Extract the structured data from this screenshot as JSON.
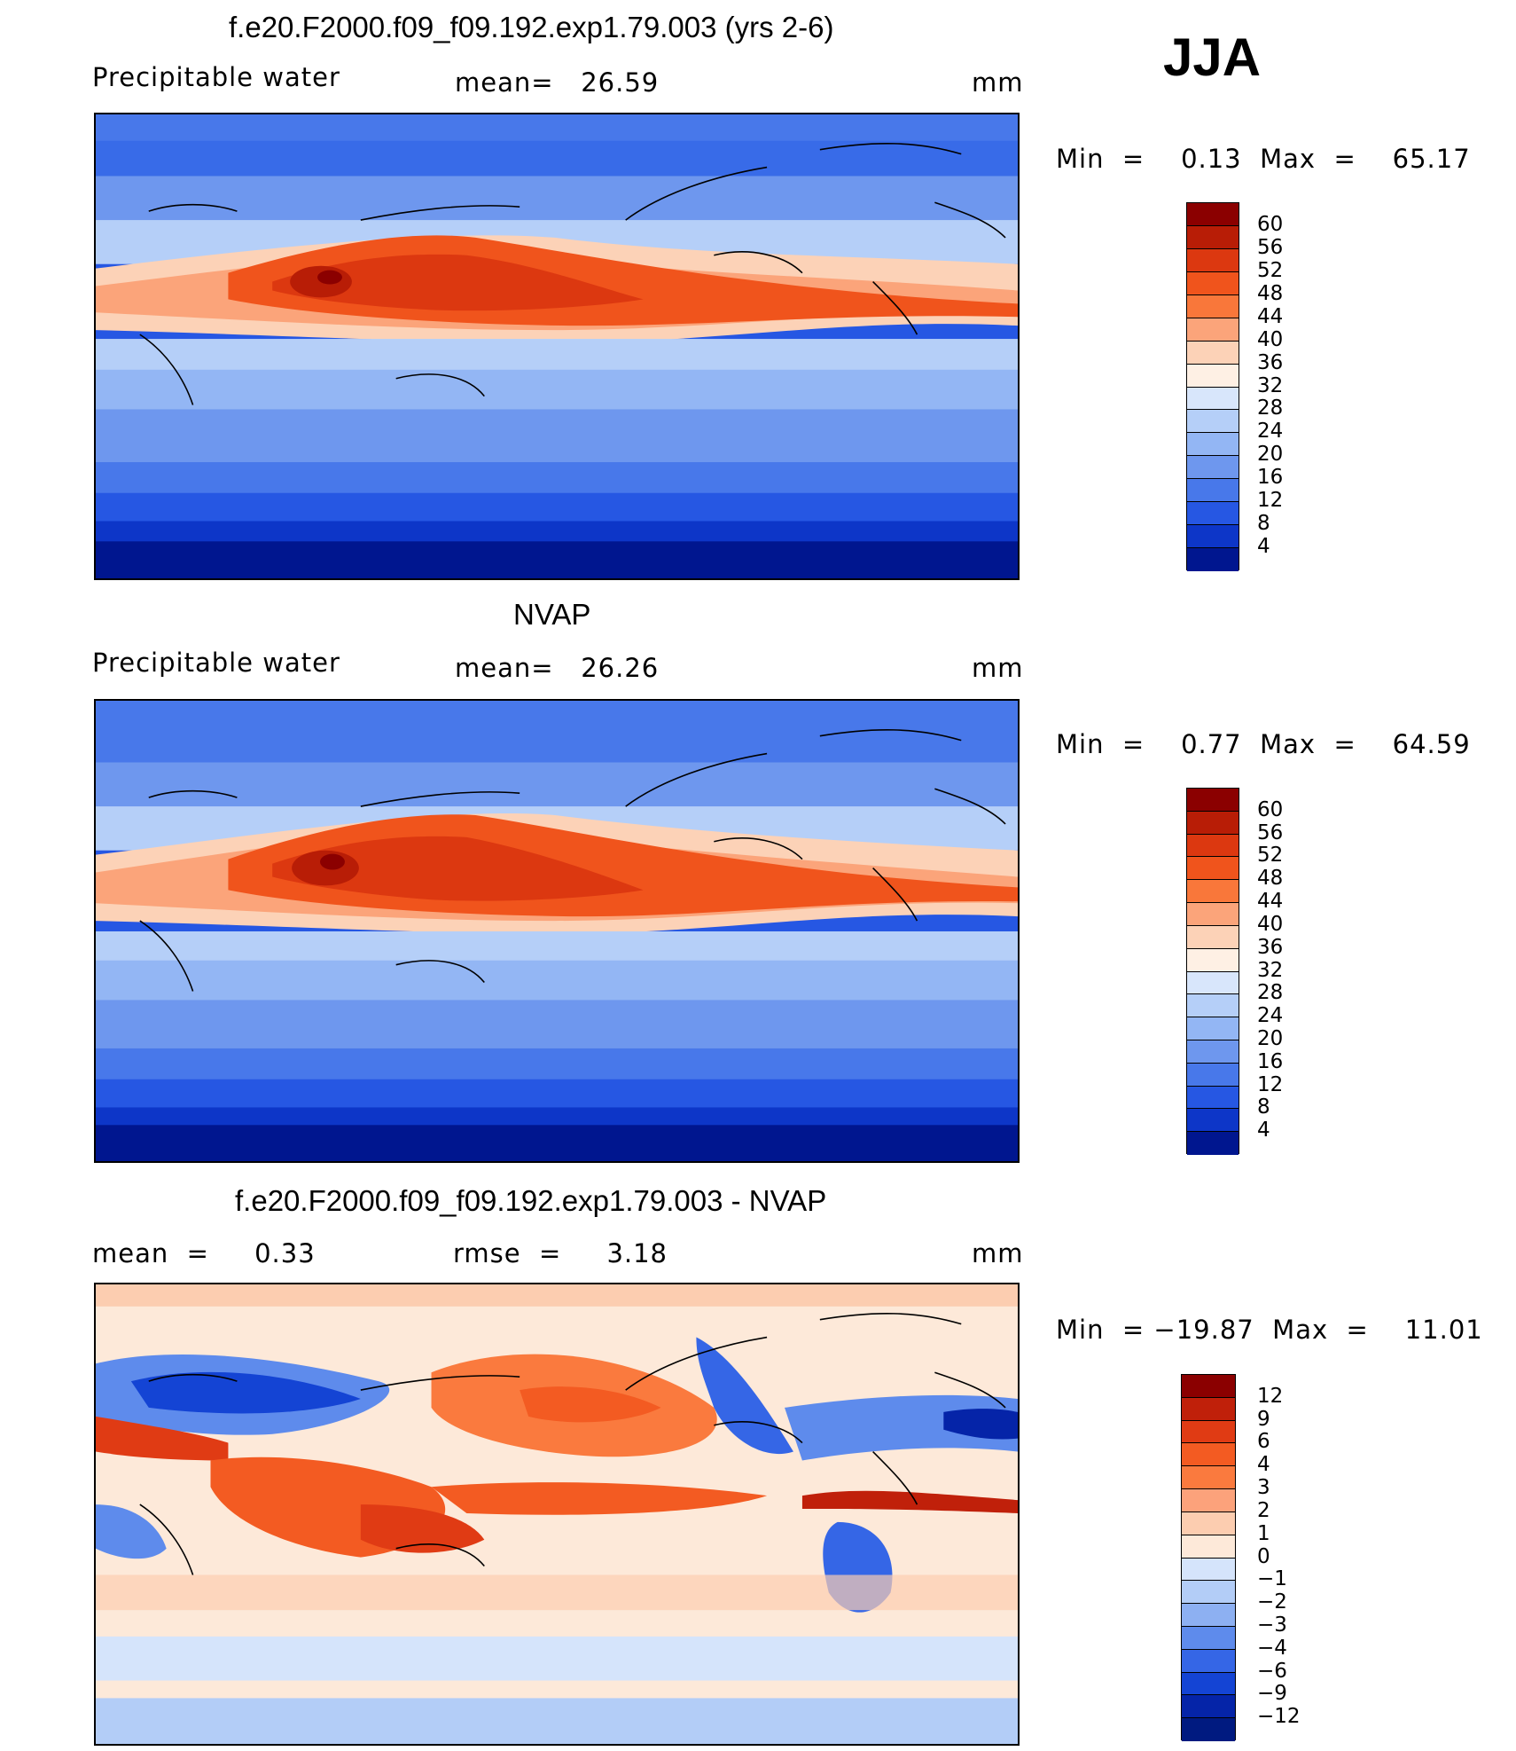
{
  "season": "JJA",
  "panels": [
    {
      "title": "f.e20.F2000.f09_f09.192.exp1.79.003 (yrs 2-6)",
      "left_label": "Precipitable  water",
      "stat_text": "mean=   26.59",
      "units": "mm",
      "minmax": "Min  =    0.13  Max  =    65.17",
      "colorbar_labels": [
        "60",
        "56",
        "52",
        "48",
        "44",
        "40",
        "36",
        "32",
        "28",
        "24",
        "20",
        "16",
        "12",
        "8",
        "4"
      ],
      "colorbar_colors": [
        "#8b0000",
        "#b81d06",
        "#dc3810",
        "#f0541c",
        "#f9773a",
        "#fba47a",
        "#fcd2b7",
        "#fef0e4",
        "#d8e6fb",
        "#b5cff8",
        "#93b6f4",
        "#6e97ee",
        "#4878ea",
        "#2657e3",
        "#0d36c8",
        "#00168f"
      ]
    },
    {
      "title": "NVAP",
      "left_label": "Precipitable  water",
      "stat_text": "mean=   26.26",
      "units": "mm",
      "minmax": "Min  =    0.77  Max  =    64.59",
      "colorbar_labels": [
        "60",
        "56",
        "52",
        "48",
        "44",
        "40",
        "36",
        "32",
        "28",
        "24",
        "20",
        "16",
        "12",
        "8",
        "4"
      ],
      "colorbar_colors": [
        "#8b0000",
        "#b81d06",
        "#dc3810",
        "#f0541c",
        "#f9773a",
        "#fba47a",
        "#fcd2b7",
        "#fef0e4",
        "#d8e6fb",
        "#b5cff8",
        "#93b6f4",
        "#6e97ee",
        "#4878ea",
        "#2657e3",
        "#0d36c8",
        "#00168f"
      ]
    },
    {
      "title": "f.e20.F2000.f09_f09.192.exp1.79.003 - NVAP",
      "left_label": "mean  =     0.33",
      "stat_text": "rmse  =     3.18",
      "units": "mm",
      "minmax": "Min  = −19.87  Max  =    11.01",
      "colorbar_labels": [
        "12",
        "9",
        "6",
        "4",
        "3",
        "2",
        "1",
        "0",
        "−1",
        "−2",
        "−3",
        "−4",
        "−6",
        "−9",
        "−12"
      ],
      "colorbar_colors": [
        "#8b0000",
        "#c0200a",
        "#e03b14",
        "#f35b22",
        "#fa7a3e",
        "#fca27b",
        "#fccdb0",
        "#fde9d9",
        "#d5e4fb",
        "#b3cdf7",
        "#8db0f2",
        "#5e8bec",
        "#3566e6",
        "#1444d4",
        "#0524a8",
        "#001a80"
      ]
    }
  ]
}
